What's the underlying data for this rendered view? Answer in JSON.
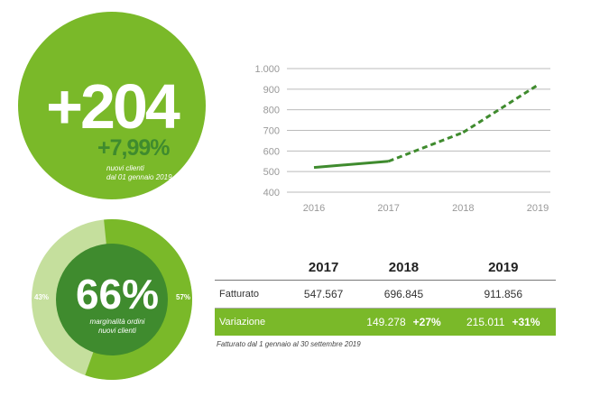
{
  "colors": {
    "green_main": "#7ab929",
    "green_dark": "#3f8b2e",
    "green_light": "#c5df9d",
    "line_green": "#3f8b2e",
    "grid": "#bbbbbb",
    "axis_text": "#999999"
  },
  "kpi": {
    "value": "+204",
    "change": "+7,99%",
    "note_line1": "nuovi clienti",
    "note_line2": "dal 01 gennaio 2019"
  },
  "donut": {
    "value": "66%",
    "note_line1": "marginalità ordini",
    "note_line2": "nuovi clienti",
    "left_label": "43%",
    "right_label": "57%",
    "share_main": 0.57
  },
  "chart_data": {
    "type": "line",
    "categories": [
      "2016",
      "2017",
      "2018",
      "2019"
    ],
    "series": [
      {
        "values": [
          520,
          550,
          690,
          920
        ],
        "segments": [
          "solid",
          "dashed",
          "dashed"
        ]
      }
    ],
    "ylim": [
      400,
      1000
    ],
    "yticks": [
      400,
      500,
      600,
      700,
      800,
      900,
      1000
    ],
    "ytick_labels": [
      "400",
      "500",
      "600",
      "700",
      "800",
      "900",
      "1.000"
    ],
    "grid": true
  },
  "table": {
    "headers": [
      "",
      "2017",
      "2018",
      "2019"
    ],
    "fatturato": {
      "label": "Fatturato",
      "v2017": "547.567",
      "v2018": "696.845",
      "v2019": "911.856"
    },
    "variazione": {
      "label": "Variazione",
      "v2018": "149.278",
      "c2018": "+27%",
      "v2019": "215.011",
      "c2019": "+31%"
    }
  },
  "footnote": "Fatturato dal 1 gennaio al 30 settembre 2019"
}
